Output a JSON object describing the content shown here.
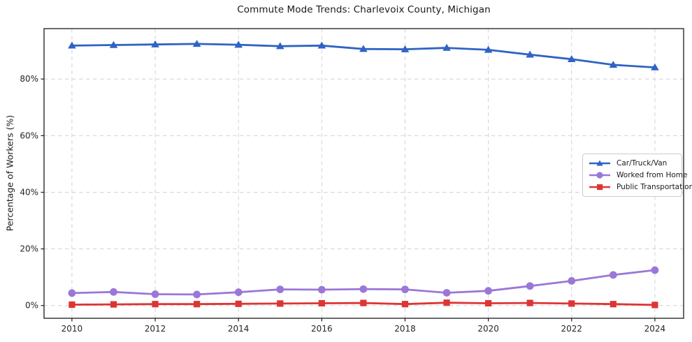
{
  "figure": {
    "background": "#ffffff",
    "frame_color": "#1a1a1a",
    "grid_color": "#d2d2d2",
    "tick_text_color": "#262626"
  },
  "chart_data": {
    "type": "line",
    "title": "Commute Mode Trends: Charlevoix County, Michigan",
    "xlabel": "",
    "ylabel": "Percentage of Workers (%)",
    "x": [
      2010,
      2011,
      2012,
      2013,
      2014,
      2015,
      2016,
      2017,
      2018,
      2019,
      2020,
      2021,
      2022,
      2023,
      2024
    ],
    "series": [
      {
        "name": "Car/Truck/Van",
        "color": "#2f63c5",
        "marker": "triangle",
        "values": [
          91.8,
          92.0,
          92.2,
          92.4,
          92.1,
          91.6,
          91.8,
          90.6,
          90.5,
          91.0,
          90.3,
          88.6,
          87.0,
          85.0,
          84.1
        ]
      },
      {
        "name": "Worked from Home",
        "color": "#9b77d8",
        "marker": "circle",
        "values": [
          4.4,
          4.8,
          4.0,
          3.9,
          4.7,
          5.7,
          5.6,
          5.8,
          5.7,
          4.5,
          5.2,
          6.9,
          8.7,
          10.8,
          12.5
        ]
      },
      {
        "name": "Public Transportation",
        "color": "#dd3534",
        "marker": "square",
        "values": [
          0.3,
          0.4,
          0.5,
          0.5,
          0.6,
          0.7,
          0.8,
          0.9,
          0.5,
          1.0,
          0.8,
          0.9,
          0.7,
          0.5,
          0.2
        ]
      }
    ],
    "xlim": [
      2009.33,
      2024.69
    ],
    "ylim": [
      -4.5,
      97.8
    ],
    "xticks": [
      2010,
      2012,
      2014,
      2016,
      2018,
      2020,
      2022,
      2024
    ],
    "xtick_labels": [
      "2010",
      "2012",
      "2014",
      "2016",
      "2018",
      "2020",
      "2022",
      "2024"
    ],
    "yticks": [
      0,
      20,
      40,
      60,
      80
    ],
    "ytick_labels": [
      "0%",
      "20%",
      "40%",
      "60%",
      "80%"
    ],
    "grid": true,
    "grid_style": "dashed",
    "legend_position": "right-middle"
  }
}
